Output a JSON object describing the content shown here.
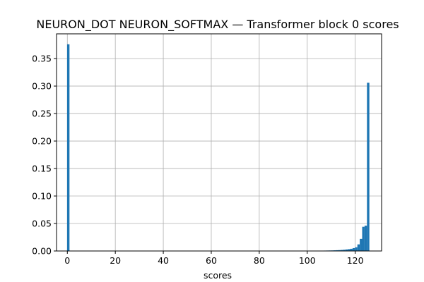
{
  "chart_data": {
    "type": "bar",
    "title": "NEURON_DOT NEURON_SOFTMAX — Transformer block 0 scores",
    "xlabel": "scores",
    "ylabel": "",
    "xlim": [
      -4.5,
      131
    ],
    "ylim": [
      0,
      0.395
    ],
    "xticks": [
      0,
      20,
      40,
      60,
      80,
      100,
      120
    ],
    "yticks": [
      0.0,
      0.05,
      0.1,
      0.15,
      0.2,
      0.25,
      0.3,
      0.35
    ],
    "ytick_labels": [
      "0.00",
      "0.05",
      "0.10",
      "0.15",
      "0.20",
      "0.25",
      "0.30",
      "0.35"
    ],
    "grid": true,
    "bar_color": "#1f77b4",
    "bin_width": 1.0,
    "bins": [
      {
        "x": -0.1,
        "value": 0.376
      },
      {
        "x": 105.9,
        "value": 0.0006
      },
      {
        "x": 106.9,
        "value": 0.0007
      },
      {
        "x": 107.9,
        "value": 0.0008
      },
      {
        "x": 108.9,
        "value": 0.0009
      },
      {
        "x": 109.9,
        "value": 0.001
      },
      {
        "x": 110.9,
        "value": 0.0012
      },
      {
        "x": 111.9,
        "value": 0.0014
      },
      {
        "x": 112.9,
        "value": 0.0016
      },
      {
        "x": 113.9,
        "value": 0.0019
      },
      {
        "x": 114.9,
        "value": 0.0023
      },
      {
        "x": 115.9,
        "value": 0.0028
      },
      {
        "x": 116.9,
        "value": 0.0033
      },
      {
        "x": 117.9,
        "value": 0.004
      },
      {
        "x": 118.9,
        "value": 0.0052
      },
      {
        "x": 119.9,
        "value": 0.0068
      },
      {
        "x": 120.9,
        "value": 0.012
      },
      {
        "x": 121.9,
        "value": 0.022
      },
      {
        "x": 122.9,
        "value": 0.044
      },
      {
        "x": 123.9,
        "value": 0.046
      },
      {
        "x": 124.9,
        "value": 0.306
      }
    ]
  }
}
